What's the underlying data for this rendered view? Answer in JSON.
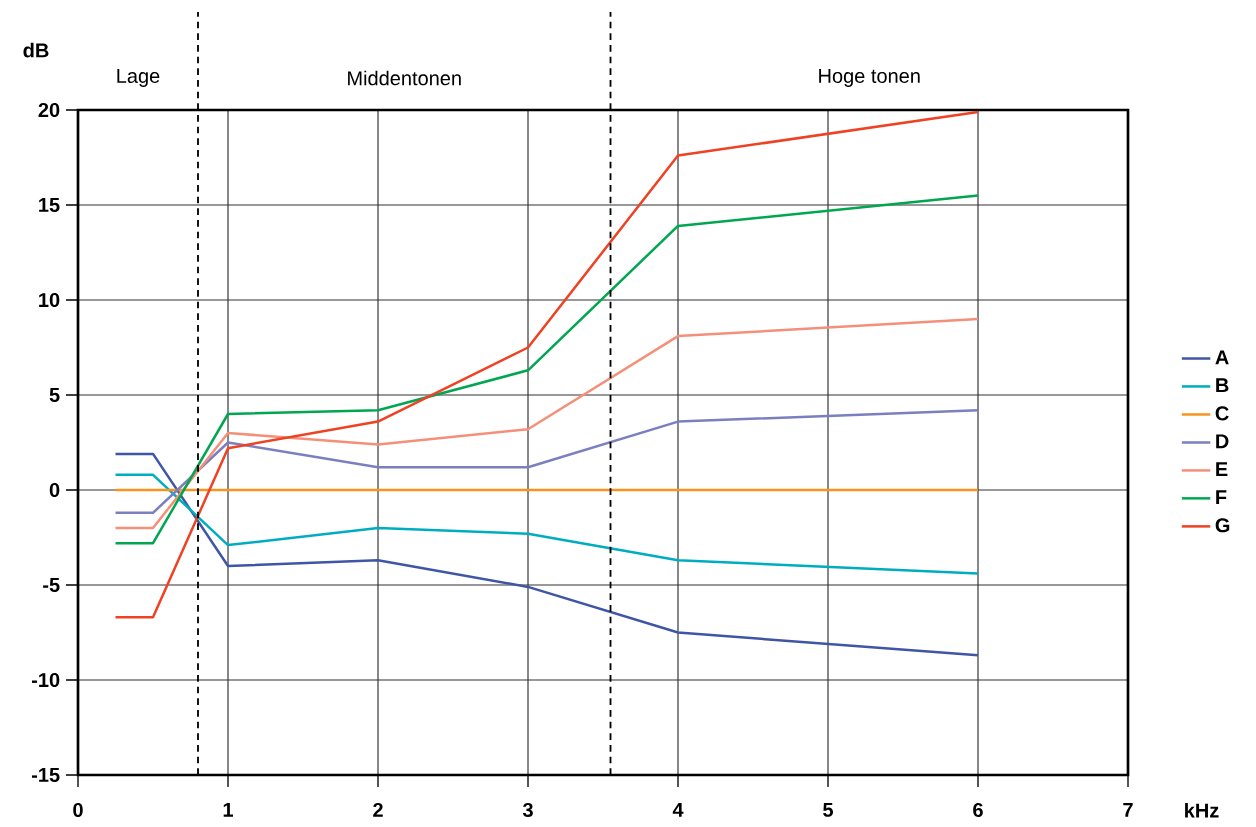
{
  "chart_data": {
    "type": "line",
    "xlabel": "kHz",
    "ylabel": "dB",
    "x": [
      0.25,
      0.5,
      1,
      2,
      3,
      4,
      6
    ],
    "xlim": [
      0,
      7
    ],
    "xticks": [
      0,
      1,
      2,
      3,
      4,
      5,
      6,
      7
    ],
    "ylim": [
      -15,
      20
    ],
    "yticks": [
      -15,
      -10,
      -5,
      0,
      5,
      10,
      15,
      20
    ],
    "grid": true,
    "legend": "right",
    "line_style": "solid",
    "marker": "none",
    "series": [
      {
        "name": "A",
        "color": "#3f55a5",
        "values": [
          1.9,
          1.9,
          -4.0,
          -3.7,
          -5.1,
          -7.5,
          -8.7
        ]
      },
      {
        "name": "B",
        "color": "#00adc0",
        "values": [
          0.8,
          0.8,
          -2.9,
          -2.0,
          -2.3,
          -3.7,
          -4.4
        ]
      },
      {
        "name": "C",
        "color": "#f7941d",
        "values": [
          0,
          0,
          0,
          0,
          0,
          0,
          0
        ]
      },
      {
        "name": "D",
        "color": "#7b7fc0",
        "values": [
          -1.2,
          -1.2,
          2.5,
          1.2,
          1.2,
          3.6,
          4.2
        ]
      },
      {
        "name": "E",
        "color": "#f4907a",
        "values": [
          -2.0,
          -2.0,
          3.0,
          2.4,
          3.2,
          8.1,
          9.0
        ]
      },
      {
        "name": "F",
        "color": "#00a650",
        "values": [
          -2.8,
          -2.8,
          4.0,
          4.2,
          6.3,
          13.9,
          15.5
        ]
      },
      {
        "name": "G",
        "color": "#ef4123",
        "values": [
          -6.7,
          -6.7,
          2.2,
          3.6,
          7.5,
          17.6,
          19.9
        ]
      }
    ],
    "ref_lines": [
      {
        "axis": "x",
        "value": 0.8,
        "line_style": "dashed"
      },
      {
        "axis": "x",
        "value": 3.55,
        "line_style": "dashed"
      }
    ],
    "annotations": [
      "Lage",
      "Middentonen",
      "Hoge tonen"
    ]
  }
}
